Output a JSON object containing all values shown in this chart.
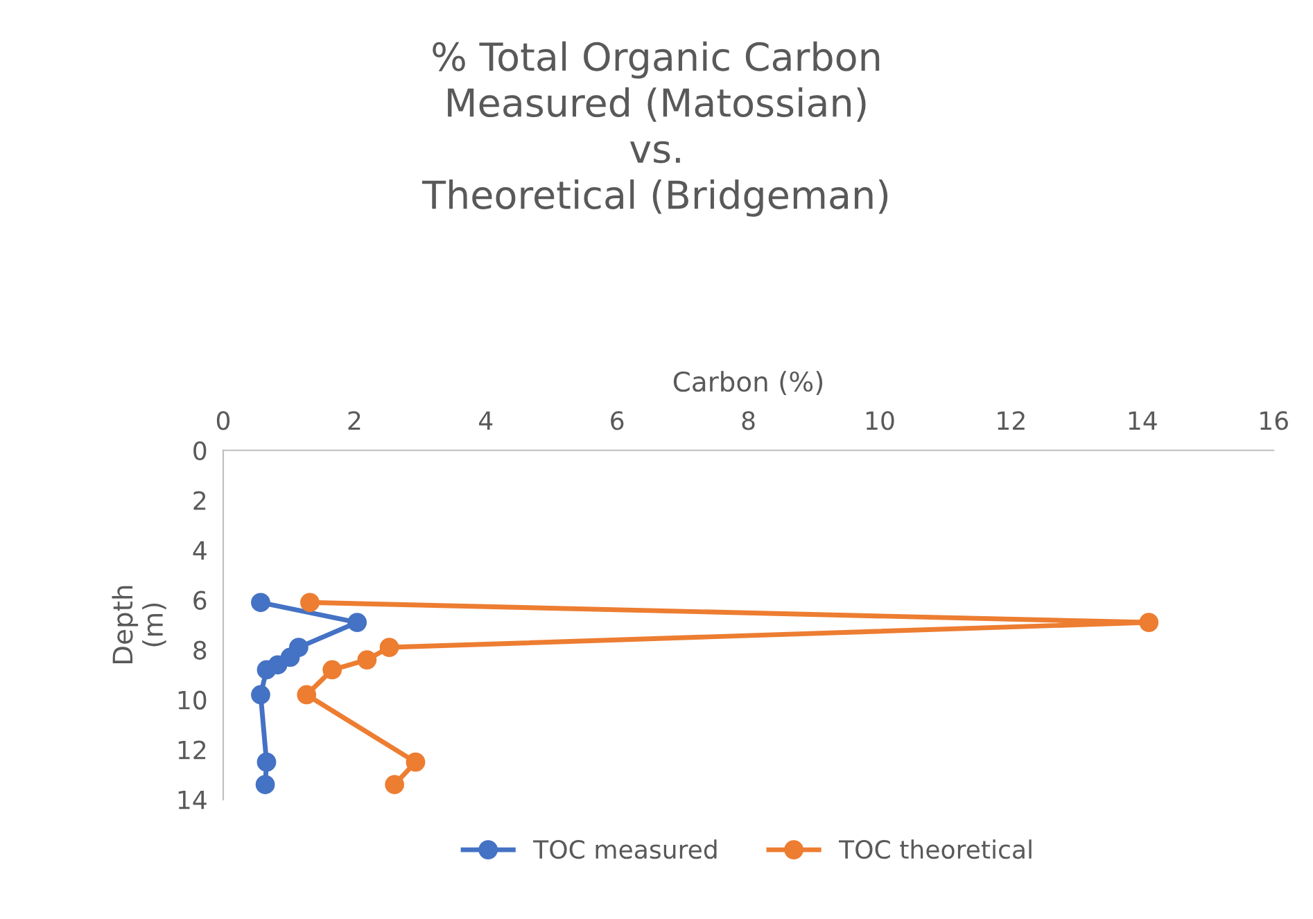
{
  "chart_data": {
    "type": "line",
    "title": "% Total Organic Carbon\nMeasured (Matossian)\nvs.\nTheoretical (Bridgeman)",
    "xlabel": "Carbon (%)",
    "ylabel": "Depth\n(m)",
    "xlim": [
      0,
      16
    ],
    "xticks": [
      0,
      2,
      4,
      6,
      8,
      10,
      12,
      14,
      16
    ],
    "ylim": [
      14,
      0
    ],
    "yticks": [
      0,
      2,
      4,
      6,
      8,
      10,
      12,
      14
    ],
    "grid": false,
    "legend": "bottom",
    "marker": "circle",
    "line_style": "solid",
    "series": [
      {
        "name": "TOC measured",
        "color": "#4472c4",
        "x": [
          0.57,
          2.04,
          1.15,
          1.02,
          0.83,
          0.66,
          0.57,
          0.66,
          0.64
        ],
        "values": [
          6.1,
          6.9,
          7.9,
          8.3,
          8.6,
          8.8,
          9.8,
          12.5,
          13.4
        ]
      },
      {
        "name": "TOC theoretical",
        "color": "#ed7d31",
        "x": [
          1.32,
          14.1,
          2.53,
          2.19,
          1.66,
          1.27,
          2.93,
          2.61
        ],
        "values": [
          6.1,
          6.9,
          7.9,
          8.4,
          8.8,
          9.8,
          12.5,
          13.4
        ]
      }
    ]
  }
}
